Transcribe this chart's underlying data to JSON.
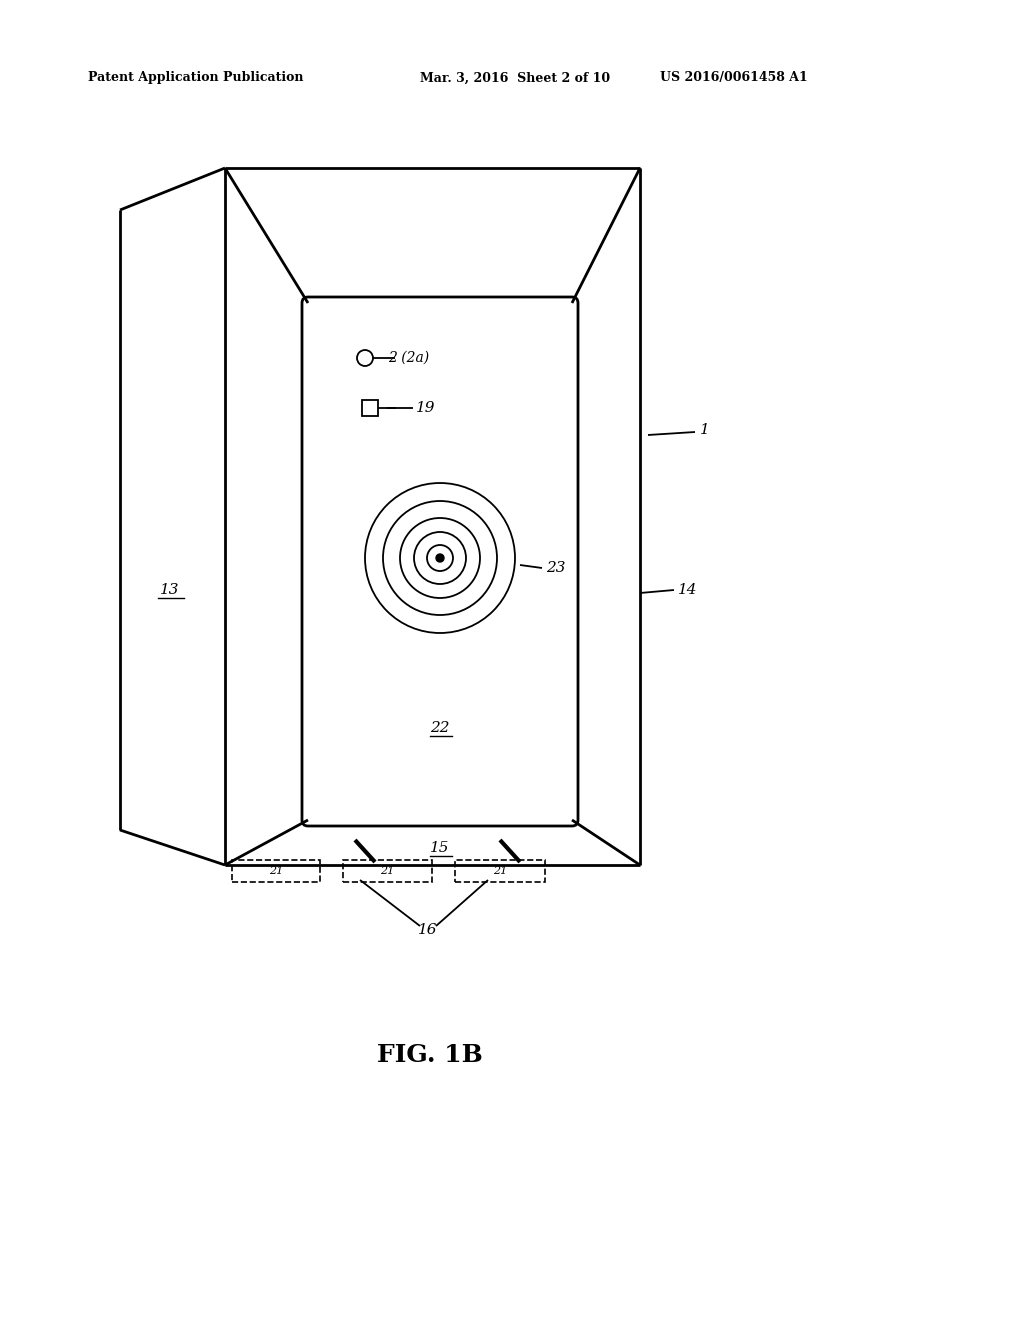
{
  "bg_color": "#ffffff",
  "line_color": "#000000",
  "header_left": "Patent Application Publication",
  "header_mid": "Mar. 3, 2016  Sheet 2 of 10",
  "header_right": "US 2016/0061458 A1",
  "fig_label": "FIG. 1B",
  "figsize": [
    10.24,
    13.2
  ],
  "dpi": 100
}
